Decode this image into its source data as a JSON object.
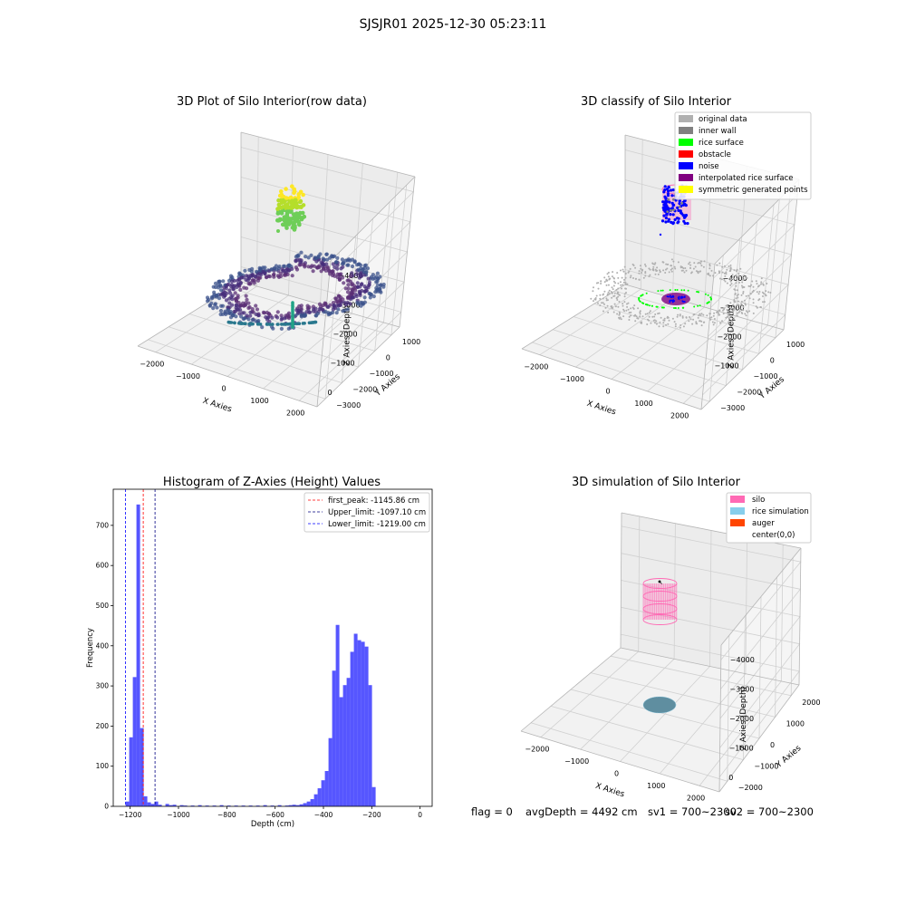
{
  "suptitle": "SJSJR01 2025-12-30 05:23:11",
  "footer": {
    "flag": "flag = 0",
    "avg_depth": "avgDepth = 4492 cm",
    "sv1": "sv1 = 700~2300",
    "sv2": "sv2 = 700~2300"
  },
  "colors": {
    "original_data": "#b0b0b0",
    "inner_wall": "#808080",
    "rice_surface": "#00ff00",
    "obstacle": "#ff0000",
    "noise": "#0000ff",
    "interpolated": "#800080",
    "symmetric": "#ffff00",
    "silo": "#ff69b4",
    "rice_sim": "#87ceeb",
    "auger": "#ff4500",
    "hist_bar": "#4d4dff"
  },
  "chart_data": [
    {
      "type": "scatter",
      "title": "3D Plot of Silo Interior(row data)",
      "xlabel": "X Axies",
      "ylabel": "Y Axies",
      "zlabel": "Z Axies (Depth)",
      "x_ticks": [
        "−2000",
        "−1000",
        "0",
        "1000",
        "2000"
      ],
      "y_ticks": [
        "1000",
        "0",
        "−1000",
        "−2000",
        "−3000"
      ],
      "z_ticks": [
        "0",
        "−1000",
        "−2000",
        "−3000",
        "−4000"
      ],
      "xlim": [
        -2500,
        2500
      ],
      "ylim": [
        -3500,
        1500
      ],
      "zlim": [
        -4500,
        0
      ]
    },
    {
      "type": "scatter",
      "title": "3D classify of Silo Interior",
      "xlabel": "X Axies",
      "ylabel": "Y Axies",
      "zlabel": "Z Axies (Depth)",
      "x_ticks": [
        "−2000",
        "−1000",
        "0",
        "1000",
        "2000"
      ],
      "y_ticks": [
        "1000",
        "0",
        "−1000",
        "−2000",
        "−3000"
      ],
      "z_ticks": [
        "−1000",
        "−2000",
        "−3000",
        "−4000"
      ],
      "legend_position": "top-right",
      "legend": [
        {
          "label": "original data",
          "color": "#b0b0b0"
        },
        {
          "label": "inner wall",
          "color": "#808080"
        },
        {
          "label": "rice surface",
          "color": "#00ff00"
        },
        {
          "label": "obstacle",
          "color": "#ff0000"
        },
        {
          "label": "noise",
          "color": "#0000ff"
        },
        {
          "label": "interpolated rice surface",
          "color": "#800080"
        },
        {
          "label": "symmetric generated points",
          "color": "#ffff00"
        }
      ]
    },
    {
      "type": "bar",
      "title": "Histogram of Z-Axies (Height) Values",
      "xlabel": "Depth (cm)",
      "ylabel": "Frequency",
      "xlim": [
        -1270,
        50
      ],
      "ylim": [
        0,
        790
      ],
      "x_ticks": [
        -1200,
        -1000,
        -800,
        -600,
        -400,
        -200,
        0
      ],
      "x_tick_labels": [
        "−1200",
        "−1000",
        "−800",
        "−600",
        "−400",
        "−200",
        "0"
      ],
      "y_ticks": [
        0,
        100,
        200,
        300,
        400,
        500,
        600,
        700
      ],
      "bins": [
        {
          "x0": -1219,
          "x1": -1204,
          "v": 12
        },
        {
          "x0": -1204,
          "x1": -1189,
          "v": 172
        },
        {
          "x0": -1189,
          "x1": -1174,
          "v": 322
        },
        {
          "x0": -1174,
          "x1": -1159,
          "v": 752
        },
        {
          "x0": -1159,
          "x1": -1144,
          "v": 195
        },
        {
          "x0": -1144,
          "x1": -1129,
          "v": 25
        },
        {
          "x0": -1129,
          "x1": -1114,
          "v": 10
        },
        {
          "x0": -1114,
          "x1": -1099,
          "v": 6
        },
        {
          "x0": -1099,
          "x1": -1084,
          "v": 12
        },
        {
          "x0": -1084,
          "x1": -1069,
          "v": 4
        },
        {
          "x0": -1054,
          "x1": -1039,
          "v": 6
        },
        {
          "x0": -1039,
          "x1": -1024,
          "v": 3
        },
        {
          "x0": -1024,
          "x1": -1009,
          "v": 4
        },
        {
          "x0": -994,
          "x1": -979,
          "v": 3
        },
        {
          "x0": -979,
          "x1": -964,
          "v": 2
        },
        {
          "x0": -949,
          "x1": -934,
          "v": 2
        },
        {
          "x0": -919,
          "x1": -904,
          "v": 3
        },
        {
          "x0": -889,
          "x1": -874,
          "v": 2
        },
        {
          "x0": -859,
          "x1": -844,
          "v": 2
        },
        {
          "x0": -829,
          "x1": -814,
          "v": 3
        },
        {
          "x0": -799,
          "x1": -784,
          "v": 2
        },
        {
          "x0": -769,
          "x1": -754,
          "v": 2
        },
        {
          "x0": -739,
          "x1": -724,
          "v": 2
        },
        {
          "x0": -709,
          "x1": -694,
          "v": 2
        },
        {
          "x0": -679,
          "x1": -664,
          "v": 2
        },
        {
          "x0": -649,
          "x1": -634,
          "v": 3
        },
        {
          "x0": -619,
          "x1": -604,
          "v": 2
        },
        {
          "x0": -589,
          "x1": -574,
          "v": 3
        },
        {
          "x0": -559,
          "x1": -544,
          "v": 2
        },
        {
          "x0": -544,
          "x1": -529,
          "v": 3
        },
        {
          "x0": -529,
          "x1": -514,
          "v": 4
        },
        {
          "x0": -514,
          "x1": -499,
          "v": 3
        },
        {
          "x0": -499,
          "x1": -484,
          "v": 5
        },
        {
          "x0": -484,
          "x1": -469,
          "v": 8
        },
        {
          "x0": -469,
          "x1": -454,
          "v": 12
        },
        {
          "x0": -454,
          "x1": -439,
          "v": 18
        },
        {
          "x0": -439,
          "x1": -424,
          "v": 30
        },
        {
          "x0": -424,
          "x1": -409,
          "v": 45
        },
        {
          "x0": -409,
          "x1": -394,
          "v": 65
        },
        {
          "x0": -394,
          "x1": -379,
          "v": 88
        },
        {
          "x0": -379,
          "x1": -364,
          "v": 170
        },
        {
          "x0": -364,
          "x1": -349,
          "v": 338
        },
        {
          "x0": -349,
          "x1": -334,
          "v": 452
        },
        {
          "x0": -334,
          "x1": -319,
          "v": 272
        },
        {
          "x0": -319,
          "x1": -304,
          "v": 302
        },
        {
          "x0": -304,
          "x1": -289,
          "v": 320
        },
        {
          "x0": -289,
          "x1": -274,
          "v": 385
        },
        {
          "x0": -274,
          "x1": -259,
          "v": 430
        },
        {
          "x0": -259,
          "x1": -244,
          "v": 414
        },
        {
          "x0": -244,
          "x1": -229,
          "v": 410
        },
        {
          "x0": -229,
          "x1": -214,
          "v": 398
        },
        {
          "x0": -214,
          "x1": -199,
          "v": 302
        },
        {
          "x0": -199,
          "x1": -184,
          "v": 48
        }
      ],
      "vlines": [
        {
          "x": -1145.86,
          "label": "first_peak: -1145.86 cm",
          "color": "#ff0000"
        },
        {
          "x": -1097.1,
          "label": "Upper_limit: -1097.10 cm",
          "color": "#000080"
        },
        {
          "x": -1219.0,
          "label": "Lower_limit: -1219.00 cm",
          "color": "#0000ff"
        }
      ],
      "legend_position": "top-right"
    },
    {
      "type": "scatter",
      "title": "3D simulation of Silo Interior",
      "xlabel": "X Axies",
      "ylabel": "Y Axies",
      "zlabel": "Z Axies (Depth)",
      "x_ticks": [
        "−2000",
        "−1000",
        "0",
        "1000",
        "2000"
      ],
      "y_ticks": [
        "2000",
        "1000",
        "0",
        "−1000",
        "−2000"
      ],
      "z_ticks": [
        "0",
        "−1000",
        "−2000",
        "−3000",
        "−4000"
      ],
      "legend_position": "top-right",
      "legend": [
        {
          "label": "silo",
          "color": "#ff69b4"
        },
        {
          "label": "rice simulation",
          "color": "#87ceeb"
        },
        {
          "label": "auger",
          "color": "#ff4500"
        },
        {
          "label": "center(0,0)",
          "color": ""
        }
      ]
    }
  ]
}
